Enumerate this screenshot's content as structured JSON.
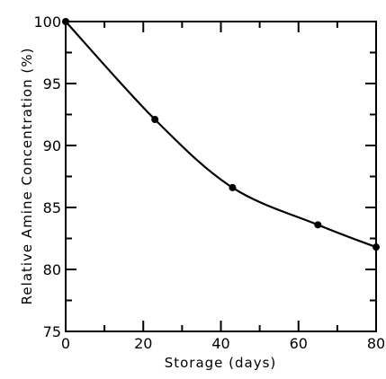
{
  "chart_data": {
    "type": "line",
    "xlabel": "Storage (days)",
    "ylabel": "Relative Amine Concentration (%)",
    "xlim": [
      0,
      80
    ],
    "ylim": [
      75,
      100
    ],
    "x_ticks": [
      0,
      20,
      40,
      60,
      80
    ],
    "y_ticks": [
      75,
      80,
      85,
      90,
      95,
      100
    ],
    "x_tick_labels": [
      "0",
      "20",
      "40",
      "60",
      "80"
    ],
    "y_tick_labels": [
      "75",
      "80",
      "85",
      "90",
      "95",
      "100"
    ],
    "grid": false,
    "series": [
      {
        "markers": true,
        "smooth": true,
        "color": "#000000",
        "x": [
          0,
          23,
          43,
          65,
          80
        ],
        "y": [
          100,
          92.1,
          86.6,
          83.6,
          81.8
        ]
      }
    ]
  }
}
